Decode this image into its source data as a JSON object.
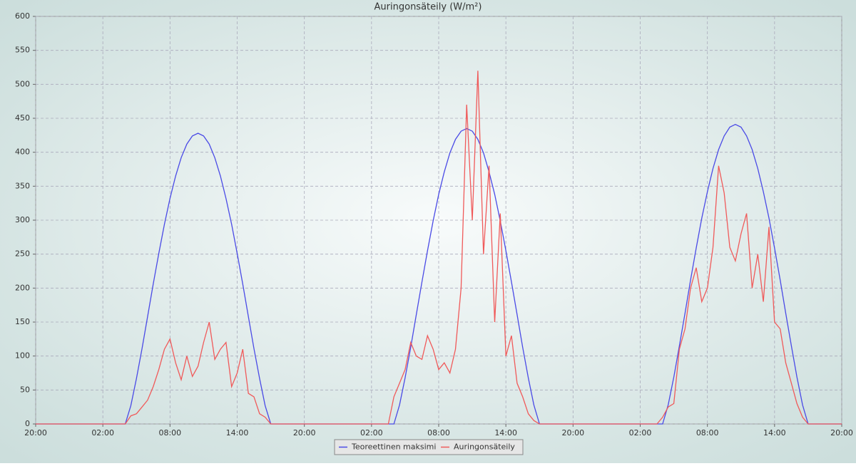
{
  "chart_data": {
    "type": "line",
    "title": "Auringonsäteily (W/m²)",
    "x": [
      0,
      0.5,
      1,
      1.5,
      2,
      2.5,
      3,
      3.5,
      4,
      4.5,
      5,
      5.5,
      6,
      6.5,
      7,
      7.5,
      8,
      8.5,
      9,
      9.5,
      10,
      10.5,
      11,
      11.5,
      12,
      12.5,
      13,
      13.5,
      14,
      14.5,
      15,
      15.5,
      16,
      16.5,
      17,
      17.5,
      18,
      18.5,
      19,
      19.5,
      20,
      20.5,
      21,
      21.5,
      22,
      22.5,
      23,
      23.5,
      24,
      24.5,
      25,
      25.5,
      26,
      26.5,
      27,
      27.5,
      28,
      28.5,
      29,
      29.5,
      30,
      30.5,
      31,
      31.5,
      32,
      32.5,
      33,
      33.5,
      34,
      34.5,
      35,
      35.5,
      36,
      36.5,
      37,
      37.5,
      38,
      38.5,
      39,
      39.5,
      40,
      40.5,
      41,
      41.5,
      42,
      42.5,
      43,
      43.5,
      44,
      44.5,
      45,
      45.5,
      46,
      46.5,
      47,
      47.5,
      48,
      48.5,
      49,
      49.5,
      50,
      50.5,
      51,
      51.5,
      52,
      52.5,
      53,
      53.5,
      54,
      54.5,
      55,
      55.5,
      56,
      56.5,
      57,
      57.5,
      58,
      58.5,
      59,
      59.5,
      60,
      60.5,
      61,
      61.5,
      62,
      62.5,
      63,
      63.5,
      64,
      64.5,
      65,
      65.5,
      66,
      66.5,
      67,
      67.5,
      68,
      68.5,
      69,
      69.5,
      70,
      70.5,
      71,
      71.5,
      72
    ],
    "series": [
      {
        "name": "Teoreettinen maksimi",
        "color": "#4a4ae6",
        "values": [
          0,
          0,
          0,
          0,
          0,
          0,
          0,
          0,
          0,
          0,
          0,
          0,
          0,
          0,
          0,
          0,
          0,
          27,
          67,
          111,
          158,
          206,
          251,
          294,
          332,
          365,
          392,
          412,
          424,
          428,
          424,
          412,
          392,
          365,
          332,
          294,
          251,
          206,
          158,
          111,
          67,
          27,
          0,
          0,
          0,
          0,
          0,
          0,
          0,
          0,
          0,
          0,
          0,
          0,
          0,
          0,
          0,
          0,
          0,
          0,
          0,
          0,
          0,
          0,
          0,
          28,
          68,
          113,
          161,
          209,
          255,
          299,
          338,
          371,
          399,
          419,
          431,
          435,
          431,
          419,
          399,
          371,
          338,
          299,
          255,
          209,
          161,
          113,
          68,
          28,
          0,
          0,
          0,
          0,
          0,
          0,
          0,
          0,
          0,
          0,
          0,
          0,
          0,
          0,
          0,
          0,
          0,
          0,
          0,
          0,
          0,
          0,
          0,
          28,
          69,
          115,
          163,
          212,
          259,
          303,
          342,
          376,
          404,
          424,
          437,
          441,
          437,
          424,
          404,
          376,
          342,
          303,
          259,
          212,
          163,
          115,
          69,
          28,
          0,
          0,
          0,
          0,
          0,
          0,
          0
        ]
      },
      {
        "name": "Auringonsäteily",
        "color": "#f05a5a",
        "values": [
          0,
          0,
          0,
          0,
          0,
          0,
          0,
          0,
          0,
          0,
          0,
          0,
          0,
          0,
          0,
          0,
          0,
          12,
          15,
          25,
          35,
          55,
          80,
          110,
          125,
          90,
          65,
          100,
          70,
          85,
          120,
          150,
          95,
          110,
          120,
          55,
          75,
          110,
          45,
          40,
          15,
          10,
          0,
          0,
          0,
          0,
          0,
          0,
          0,
          0,
          0,
          0,
          0,
          0,
          0,
          0,
          0,
          0,
          0,
          0,
          0,
          0,
          0,
          0,
          40,
          60,
          80,
          120,
          100,
          95,
          130,
          110,
          80,
          90,
          75,
          110,
          200,
          470,
          300,
          520,
          250,
          380,
          150,
          310,
          100,
          130,
          60,
          40,
          15,
          5,
          0,
          0,
          0,
          0,
          0,
          0,
          0,
          0,
          0,
          0,
          0,
          0,
          0,
          0,
          0,
          0,
          0,
          0,
          0,
          0,
          0,
          0,
          10,
          25,
          30,
          110,
          140,
          200,
          230,
          180,
          200,
          260,
          380,
          340,
          260,
          240,
          280,
          310,
          200,
          250,
          180,
          290,
          150,
          140,
          90,
          60,
          30,
          10,
          0,
          0,
          0,
          0,
          0,
          0,
          0
        ]
      }
    ],
    "xlim": [
      0,
      72
    ],
    "xticks": [
      {
        "value": 0,
        "label": "20:00"
      },
      {
        "value": 6,
        "label": "02:00"
      },
      {
        "value": 12,
        "label": "08:00"
      },
      {
        "value": 18,
        "label": "14:00"
      },
      {
        "value": 24,
        "label": "20:00"
      },
      {
        "value": 30,
        "label": "02:00"
      },
      {
        "value": 36,
        "label": "08:00"
      },
      {
        "value": 42,
        "label": "14:00"
      },
      {
        "value": 48,
        "label": "20:00"
      },
      {
        "value": 54,
        "label": "02:00"
      },
      {
        "value": 60,
        "label": "08:00"
      },
      {
        "value": 66,
        "label": "14:00"
      },
      {
        "value": 72,
        "label": "20:00"
      }
    ],
    "ylim": [
      0,
      600
    ],
    "yticks": [
      0,
      50,
      100,
      150,
      200,
      250,
      300,
      350,
      400,
      450,
      500,
      550,
      600
    ],
    "grid": true
  }
}
